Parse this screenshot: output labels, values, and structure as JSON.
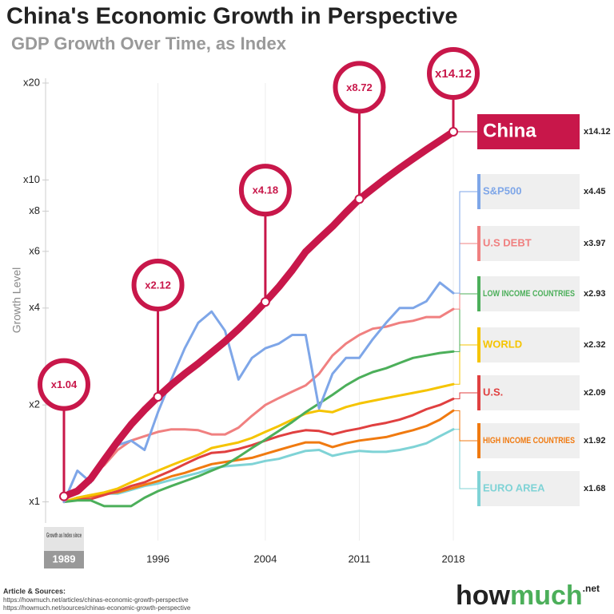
{
  "chart_data": {
    "type": "line",
    "title": "China's Economic Growth in Perspective",
    "subtitle": "GDP Growth Over Time, as Index",
    "y_label": "Growth Level",
    "x_note": "Growth as Index since",
    "log_scale": true,
    "x": [
      1989,
      1990,
      1991,
      1992,
      1993,
      1994,
      1995,
      1996,
      1997,
      1998,
      1999,
      2000,
      2001,
      2002,
      2003,
      2004,
      2005,
      2006,
      2007,
      2008,
      2009,
      2010,
      2011,
      2012,
      2013,
      2014,
      2015,
      2016,
      2017,
      2018
    ],
    "xlim": [
      1989,
      2018
    ],
    "xticks": [
      1989,
      1996,
      2004,
      2011,
      2018
    ],
    "ylim": [
      0.9,
      20
    ],
    "yticks": [
      {
        "value": 1,
        "label": "x1"
      },
      {
        "value": 2,
        "label": "x2"
      },
      {
        "value": 4,
        "label": "x4"
      },
      {
        "value": 6,
        "label": "x6"
      },
      {
        "value": 8,
        "label": "x8"
      },
      {
        "value": 10,
        "label": "x10"
      },
      {
        "value": 20,
        "label": "x20"
      }
    ],
    "callouts": [
      {
        "x": 1989,
        "label": "x1.04"
      },
      {
        "x": 1996,
        "label": "x2.12"
      },
      {
        "x": 2004,
        "label": "x4.18"
      },
      {
        "x": 2011,
        "label": "x8.72"
      },
      {
        "x": 2018,
        "label": "x14.12"
      }
    ],
    "series": [
      {
        "name": "China",
        "color": "#c8174a",
        "end_label": "x14.12",
        "values": [
          1.04,
          1.08,
          1.18,
          1.35,
          1.54,
          1.74,
          1.93,
          2.12,
          2.31,
          2.5,
          2.69,
          2.91,
          3.15,
          3.44,
          3.78,
          4.18,
          4.65,
          5.24,
          5.98,
          6.56,
          7.17,
          7.93,
          8.72,
          9.4,
          10.13,
          10.87,
          11.63,
          12.42,
          13.24,
          14.12
        ]
      },
      {
        "name": "S&P500",
        "color": "#7ea6e8",
        "end_label": "x4.45",
        "values": [
          1,
          1.25,
          1.15,
          1.35,
          1.5,
          1.55,
          1.45,
          1.9,
          2.4,
          3.0,
          3.6,
          3.9,
          3.4,
          2.4,
          2.8,
          3.0,
          3.1,
          3.3,
          3.3,
          1.95,
          2.5,
          2.8,
          2.8,
          3.2,
          3.6,
          4.0,
          4.0,
          4.2,
          4.8,
          4.45
        ]
      },
      {
        "name": "U.S DEBT",
        "color": "#f08080",
        "end_label": "x3.97",
        "values": [
          1,
          1.1,
          1.2,
          1.3,
          1.45,
          1.55,
          1.6,
          1.65,
          1.68,
          1.68,
          1.67,
          1.62,
          1.62,
          1.7,
          1.85,
          2.0,
          2.1,
          2.2,
          2.3,
          2.5,
          2.85,
          3.1,
          3.3,
          3.45,
          3.5,
          3.6,
          3.65,
          3.75,
          3.75,
          3.97
        ]
      },
      {
        "name": "LOW INCOME COUNTRIES",
        "color": "#4caf5a",
        "end_label": "x2.93",
        "values": [
          1,
          1.01,
          1.01,
          0.97,
          0.97,
          0.97,
          1.03,
          1.08,
          1.12,
          1.16,
          1.2,
          1.25,
          1.3,
          1.38,
          1.47,
          1.56,
          1.66,
          1.77,
          1.9,
          2.02,
          2.15,
          2.3,
          2.43,
          2.53,
          2.6,
          2.7,
          2.8,
          2.85,
          2.9,
          2.93
        ]
      },
      {
        "name": "WORLD",
        "color": "#f5c400",
        "end_label": "x2.32",
        "values": [
          1,
          1.03,
          1.05,
          1.07,
          1.1,
          1.15,
          1.2,
          1.25,
          1.3,
          1.35,
          1.4,
          1.47,
          1.5,
          1.53,
          1.58,
          1.65,
          1.72,
          1.8,
          1.88,
          1.92,
          1.9,
          1.97,
          2.02,
          2.06,
          2.1,
          2.14,
          2.18,
          2.22,
          2.27,
          2.32
        ]
      },
      {
        "name": "U.S.",
        "color": "#e04040",
        "end_label": "x2.09",
        "values": [
          1,
          1.02,
          1.02,
          1.05,
          1.08,
          1.12,
          1.15,
          1.2,
          1.25,
          1.31,
          1.37,
          1.42,
          1.43,
          1.46,
          1.5,
          1.55,
          1.6,
          1.64,
          1.67,
          1.66,
          1.62,
          1.66,
          1.69,
          1.73,
          1.76,
          1.8,
          1.86,
          1.94,
          2.0,
          2.09
        ]
      },
      {
        "name": "HIGH INCOME COUNTRIES",
        "color": "#f07a10",
        "end_label": "x1.92",
        "values": [
          1,
          1.03,
          1.04,
          1.06,
          1.07,
          1.1,
          1.13,
          1.16,
          1.2,
          1.23,
          1.27,
          1.31,
          1.33,
          1.35,
          1.37,
          1.41,
          1.45,
          1.49,
          1.53,
          1.53,
          1.48,
          1.52,
          1.55,
          1.57,
          1.59,
          1.63,
          1.67,
          1.72,
          1.8,
          1.92
        ]
      },
      {
        "name": "EURO AREA",
        "color": "#7fd3d6",
        "end_label": "x1.68",
        "values": [
          1,
          1.03,
          1.05,
          1.06,
          1.06,
          1.09,
          1.12,
          1.14,
          1.17,
          1.2,
          1.23,
          1.27,
          1.29,
          1.3,
          1.31,
          1.34,
          1.36,
          1.4,
          1.44,
          1.45,
          1.39,
          1.42,
          1.44,
          1.43,
          1.43,
          1.45,
          1.48,
          1.52,
          1.6,
          1.68
        ]
      }
    ]
  },
  "footer": {
    "sources_title": "Article & Sources:",
    "sources": [
      "https://howmuch.net/articles/chinas-economic-growth-perspective",
      "https://howmuch.net/sources/chinas-economic-growth-perspective"
    ],
    "logo_how": "how",
    "logo_much": "much",
    "logo_net": ".net"
  }
}
